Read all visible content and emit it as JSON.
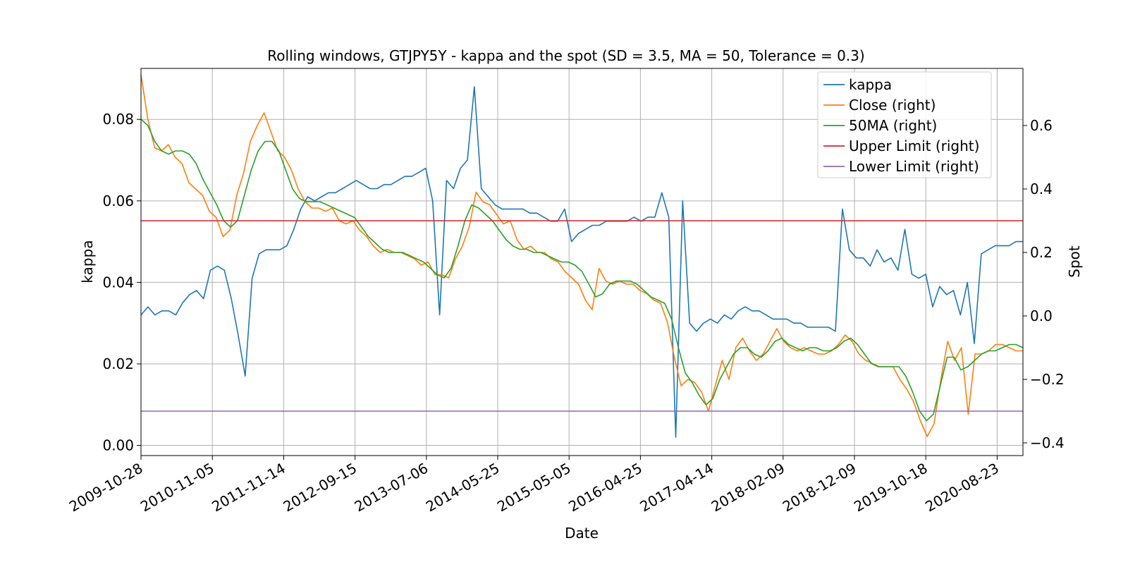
{
  "chart_data": {
    "type": "line",
    "title": "Rolling windows, GTJPY5Y - kappa and the spot (SD = 3.5, MA = 50, Tolerance  = 0.3)",
    "xlabel": "Date",
    "ylabel_left": "kappa",
    "ylabel_right": "Spot",
    "x_ticks": [
      "2009-10-28",
      "2010-11-05",
      "2011-11-14",
      "2012-09-15",
      "2013-07-06",
      "2014-05-25",
      "2015-05-05",
      "2016-04-25",
      "2017-04-14",
      "2018-02-09",
      "2018-12-09",
      "2019-10-18",
      "2020-08-23"
    ],
    "y_left_ticks": [
      "0.00",
      "0.02",
      "0.04",
      "0.06",
      "0.08"
    ],
    "y_right_ticks": [
      "−0.4",
      "−0.2",
      "0.0",
      "0.2",
      "0.4",
      "0.6"
    ],
    "ylim_left": [
      -0.0025,
      0.0925
    ],
    "ylim_right": [
      -0.44,
      0.78
    ],
    "grid": true,
    "legend_position": "top-right",
    "legend": [
      "kappa",
      "Close (right)",
      "50MA (right)",
      "Upper Limit (right)",
      "Lower Limit (right)"
    ],
    "series": [
      {
        "name": "kappa",
        "axis": "left",
        "color": "#1f77b4",
        "values": [
          0.032,
          0.034,
          0.032,
          0.033,
          0.033,
          0.032,
          0.035,
          0.037,
          0.038,
          0.036,
          0.043,
          0.044,
          0.043,
          0.036,
          0.027,
          0.017,
          0.041,
          0.047,
          0.048,
          0.048,
          0.048,
          0.049,
          0.053,
          0.058,
          0.061,
          0.06,
          0.061,
          0.062,
          0.062,
          0.063,
          0.064,
          0.065,
          0.064,
          0.063,
          0.063,
          0.064,
          0.064,
          0.065,
          0.066,
          0.066,
          0.067,
          0.068,
          0.06,
          0.032,
          0.065,
          0.063,
          0.068,
          0.07,
          0.088,
          0.063,
          0.061,
          0.059,
          0.058,
          0.058,
          0.058,
          0.058,
          0.057,
          0.057,
          0.056,
          0.055,
          0.055,
          0.058,
          0.05,
          0.052,
          0.053,
          0.054,
          0.054,
          0.055,
          0.055,
          0.055,
          0.055,
          0.056,
          0.055,
          0.056,
          0.056,
          0.062,
          0.056,
          0.002,
          0.06,
          0.03,
          0.028,
          0.03,
          0.031,
          0.03,
          0.032,
          0.031,
          0.033,
          0.034,
          0.033,
          0.033,
          0.032,
          0.031,
          0.031,
          0.031,
          0.03,
          0.03,
          0.029,
          0.029,
          0.029,
          0.029,
          0.028,
          0.058,
          0.048,
          0.046,
          0.046,
          0.044,
          0.048,
          0.045,
          0.046,
          0.043,
          0.053,
          0.042,
          0.041,
          0.042,
          0.034,
          0.039,
          0.037,
          0.038,
          0.032,
          0.04,
          0.025,
          0.047,
          0.048,
          0.049,
          0.049,
          0.049,
          0.05,
          0.05
        ]
      },
      {
        "name": "Close (right)",
        "axis": "right",
        "color": "#ff7f0e",
        "values": [
          0.76,
          0.62,
          0.53,
          0.52,
          0.54,
          0.5,
          0.48,
          0.42,
          0.4,
          0.38,
          0.33,
          0.31,
          0.25,
          0.27,
          0.38,
          0.45,
          0.55,
          0.6,
          0.64,
          0.58,
          0.52,
          0.5,
          0.46,
          0.4,
          0.36,
          0.34,
          0.34,
          0.33,
          0.34,
          0.3,
          0.29,
          0.3,
          0.27,
          0.25,
          0.22,
          0.2,
          0.21,
          0.2,
          0.2,
          0.19,
          0.18,
          0.16,
          0.17,
          0.13,
          0.13,
          0.12,
          0.18,
          0.22,
          0.28,
          0.39,
          0.36,
          0.35,
          0.32,
          0.29,
          0.3,
          0.24,
          0.21,
          0.22,
          0.2,
          0.2,
          0.18,
          0.17,
          0.14,
          0.12,
          0.1,
          0.05,
          0.02,
          0.15,
          0.11,
          0.1,
          0.11,
          0.1,
          0.1,
          0.08,
          0.07,
          0.05,
          0.04,
          -0.02,
          -0.13,
          -0.22,
          -0.2,
          -0.21,
          -0.24,
          -0.3,
          -0.22,
          -0.14,
          -0.2,
          -0.1,
          -0.07,
          -0.11,
          -0.14,
          -0.12,
          -0.08,
          -0.04,
          -0.08,
          -0.1,
          -0.11,
          -0.1,
          -0.11,
          -0.12,
          -0.12,
          -0.11,
          -0.09,
          -0.06,
          -0.08,
          -0.12,
          -0.14,
          -0.15,
          -0.16,
          -0.16,
          -0.16,
          -0.2,
          -0.23,
          -0.27,
          -0.33,
          -0.38,
          -0.34,
          -0.2,
          -0.08,
          -0.14,
          -0.1,
          -0.31,
          -0.12,
          -0.12,
          -0.11,
          -0.09,
          -0.09,
          -0.1,
          -0.11,
          -0.11
        ]
      },
      {
        "name": "50MA (right)",
        "axis": "right",
        "color": "#2ca02c",
        "values": [
          0.62,
          0.6,
          0.55,
          0.52,
          0.51,
          0.52,
          0.52,
          0.51,
          0.48,
          0.43,
          0.39,
          0.35,
          0.3,
          0.28,
          0.3,
          0.38,
          0.46,
          0.52,
          0.55,
          0.55,
          0.52,
          0.46,
          0.4,
          0.37,
          0.36,
          0.36,
          0.36,
          0.35,
          0.34,
          0.33,
          0.32,
          0.31,
          0.28,
          0.25,
          0.23,
          0.21,
          0.2,
          0.2,
          0.2,
          0.19,
          0.18,
          0.17,
          0.15,
          0.13,
          0.12,
          0.15,
          0.22,
          0.3,
          0.35,
          0.34,
          0.32,
          0.3,
          0.27,
          0.24,
          0.22,
          0.21,
          0.21,
          0.2,
          0.2,
          0.19,
          0.18,
          0.17,
          0.17,
          0.16,
          0.14,
          0.1,
          0.06,
          0.07,
          0.1,
          0.11,
          0.11,
          0.11,
          0.1,
          0.08,
          0.06,
          0.05,
          0.04,
          -0.01,
          -0.1,
          -0.18,
          -0.21,
          -0.25,
          -0.28,
          -0.26,
          -0.2,
          -0.16,
          -0.12,
          -0.1,
          -0.1,
          -0.12,
          -0.13,
          -0.11,
          -0.08,
          -0.07,
          -0.09,
          -0.1,
          -0.11,
          -0.1,
          -0.1,
          -0.11,
          -0.11,
          -0.1,
          -0.08,
          -0.07,
          -0.09,
          -0.12,
          -0.15,
          -0.16,
          -0.16,
          -0.16,
          -0.16,
          -0.19,
          -0.24,
          -0.3,
          -0.33,
          -0.31,
          -0.22,
          -0.13,
          -0.13,
          -0.17,
          -0.16,
          -0.14,
          -0.12,
          -0.11,
          -0.11,
          -0.1,
          -0.09,
          -0.09,
          -0.1
        ]
      },
      {
        "name": "Upper Limit (right)",
        "axis": "right",
        "color": "#d62728",
        "values": [
          0.3,
          0.3
        ]
      },
      {
        "name": "Lower Limit (right)",
        "axis": "right",
        "color": "#9467bd",
        "values": [
          -0.3,
          -0.3
        ]
      }
    ]
  }
}
